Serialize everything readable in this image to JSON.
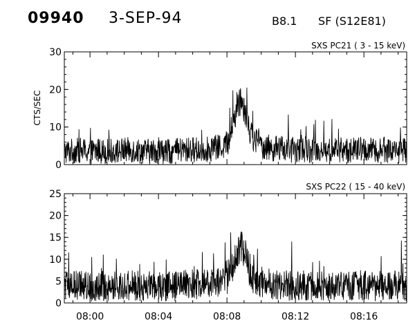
{
  "header": {
    "event_id": "09940",
    "date": "3-SEP-94",
    "flare_class": "B8.1",
    "flare_type_location": "SF (S12E81)"
  },
  "chart_data": [
    {
      "type": "line",
      "title": "SXS PC21  (  3 - 15 keV)",
      "ylabel": "CTS/SEC",
      "xlabel": "",
      "xlim": [
        "07:58:30",
        "08:18:30"
      ],
      "ylim": [
        0,
        30
      ],
      "yticks": [
        0,
        10,
        20,
        30
      ],
      "xticks": [
        "08:00",
        "08:04",
        "08:08",
        "08:12",
        "08:16"
      ],
      "series": [
        {
          "x": [
            "07:58:30",
            "07:59:00",
            "07:59:30",
            "08:00:00",
            "08:00:30",
            "08:01:00",
            "08:01:30",
            "08:02:00",
            "08:02:30",
            "08:03:00",
            "08:03:30",
            "08:04:00",
            "08:04:30",
            "08:05:00",
            "08:05:30",
            "08:06:00",
            "08:06:30",
            "08:07:00",
            "08:07:30",
            "08:08:00",
            "08:08:15",
            "08:08:30",
            "08:08:45",
            "08:09:00",
            "08:09:15",
            "08:09:30",
            "08:10:00",
            "08:10:30",
            "08:11:00",
            "08:11:30",
            "08:12:00",
            "08:12:30",
            "08:13:00",
            "08:13:30",
            "08:14:00",
            "08:14:30",
            "08:15:00",
            "08:15:30",
            "08:16:00",
            "08:16:30",
            "08:17:00",
            "08:17:30",
            "08:18:00",
            "08:18:30"
          ],
          "y": [
            3.5,
            3.6,
            3.8,
            3.4,
            3.7,
            3.5,
            3.6,
            3.8,
            3.9,
            3.6,
            3.5,
            3.7,
            3.4,
            3.6,
            3.8,
            4.0,
            3.9,
            4.2,
            4.5,
            5.5,
            9.0,
            14.0,
            17.5,
            16.0,
            11.0,
            7.0,
            5.0,
            4.4,
            4.2,
            4.0,
            3.9,
            4.1,
            3.8,
            3.9,
            3.7,
            4.0,
            3.8,
            3.9,
            4.1,
            3.7,
            3.8,
            3.9,
            3.8,
            3.7
          ]
        }
      ],
      "grid": false,
      "legend": "none"
    },
    {
      "type": "line",
      "title": "SXS PC22  ( 15 - 40 keV)",
      "ylabel": "",
      "xlabel": "",
      "xlim": [
        "07:58:30",
        "08:18:30"
      ],
      "ylim": [
        0,
        25
      ],
      "yticks": [
        0,
        5,
        10,
        15,
        20,
        25
      ],
      "xticks": [
        "08:00",
        "08:04",
        "08:08",
        "08:12",
        "08:16"
      ],
      "series": [
        {
          "x": [
            "07:58:30",
            "07:59:00",
            "07:59:30",
            "08:00:00",
            "08:00:30",
            "08:01:00",
            "08:01:30",
            "08:02:00",
            "08:02:30",
            "08:03:00",
            "08:03:30",
            "08:04:00",
            "08:04:30",
            "08:05:00",
            "08:05:30",
            "08:06:00",
            "08:06:30",
            "08:07:00",
            "08:07:30",
            "08:08:00",
            "08:08:15",
            "08:08:30",
            "08:08:45",
            "08:09:00",
            "08:09:15",
            "08:09:30",
            "08:10:00",
            "08:10:30",
            "08:11:00",
            "08:11:30",
            "08:12:00",
            "08:12:30",
            "08:13:00",
            "08:13:30",
            "08:14:00",
            "08:14:30",
            "08:15:00",
            "08:15:30",
            "08:16:00",
            "08:16:30",
            "08:17:00",
            "08:17:30",
            "08:18:00",
            "08:18:30"
          ],
          "y": [
            3.8,
            3.9,
            4.0,
            3.7,
            4.0,
            3.8,
            3.9,
            4.1,
            4.0,
            3.8,
            3.9,
            4.0,
            3.7,
            3.9,
            4.1,
            4.2,
            4.3,
            4.5,
            4.8,
            5.5,
            7.5,
            10.5,
            13.5,
            12.0,
            8.5,
            6.0,
            4.8,
            4.3,
            4.1,
            4.0,
            3.9,
            4.1,
            3.9,
            4.0,
            3.8,
            4.0,
            3.9,
            4.0,
            4.1,
            3.8,
            3.9,
            4.0,
            3.9,
            3.8
          ]
        }
      ],
      "grid": false,
      "legend": "none"
    }
  ]
}
